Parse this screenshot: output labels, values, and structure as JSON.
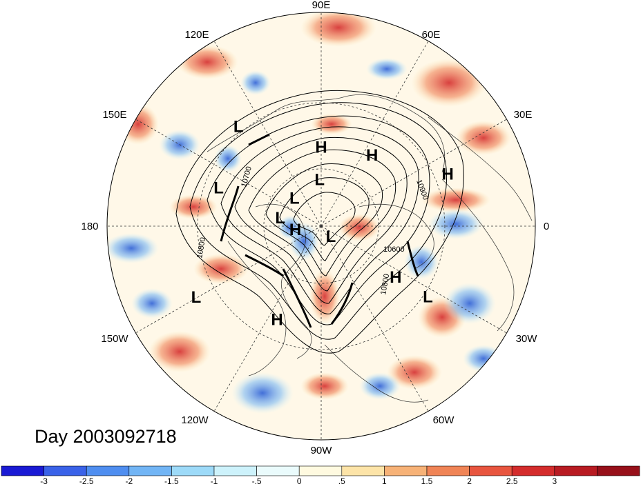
{
  "map": {
    "projection": "north-polar-stereographic",
    "longitude_labels": [
      {
        "text": "90E",
        "lon": 90
      },
      {
        "text": "60E",
        "lon": 60
      },
      {
        "text": "30E",
        "lon": 30
      },
      {
        "text": "0",
        "lon": 0
      },
      {
        "text": "30W",
        "lon": -30
      },
      {
        "text": "60W",
        "lon": -60
      },
      {
        "text": "90W",
        "lon": -90
      },
      {
        "text": "120W",
        "lon": -120
      },
      {
        "text": "150W",
        "lon": -150
      },
      {
        "text": "180",
        "lon": 180
      },
      {
        "text": "150E",
        "lon": 150
      },
      {
        "text": "120E",
        "lon": 120
      }
    ],
    "pressure_centers": [
      {
        "type": "L",
        "lat": 28,
        "lon": 130
      },
      {
        "type": "H",
        "lat": 50,
        "lon": 90
      },
      {
        "type": "H",
        "lat": 46,
        "lon": 54
      },
      {
        "type": "H",
        "lat": 25,
        "lon": 22
      },
      {
        "type": "L",
        "lat": 36,
        "lon": 160
      },
      {
        "type": "L",
        "lat": 66,
        "lon": 92
      },
      {
        "type": "L",
        "lat": 70,
        "lon": 135
      },
      {
        "type": "H",
        "lat": 76,
        "lon": -170
      },
      {
        "type": "L",
        "lat": 68,
        "lon": 170
      },
      {
        "type": "L",
        "lat": 82,
        "lon": -50
      },
      {
        "type": "H",
        "lat": 44,
        "lon": -35
      },
      {
        "type": "L",
        "lat": 28,
        "lon": -34
      },
      {
        "type": "H",
        "lat": 38,
        "lon": -115
      },
      {
        "type": "L",
        "lat": 22,
        "lon": -150
      }
    ],
    "contour_labels": [
      "10800",
      "10600",
      "10800",
      "10900",
      "10700"
    ],
    "accent_colors": {
      "warm": "#d62f2f",
      "cool": "#2d6fd6",
      "neutral": "#fffbe8"
    }
  },
  "title": {
    "day_label": "Day 2003092718"
  },
  "colorbar": {
    "colors": [
      "#1a1ad4",
      "#3a62e8",
      "#4f8ef0",
      "#72b5f5",
      "#9ddaf8",
      "#cdf2fb",
      "#eafbfc",
      "#fffae0",
      "#fde4a8",
      "#f7b277",
      "#f08456",
      "#e8553f",
      "#d42c2c",
      "#b81b22",
      "#97101a"
    ],
    "tick_labels": [
      "-3",
      "-2.5",
      "-2",
      "-1.5",
      "-1",
      "-.5",
      "0",
      ".5",
      "1",
      "1.5",
      "2",
      "2.5",
      "3"
    ]
  }
}
